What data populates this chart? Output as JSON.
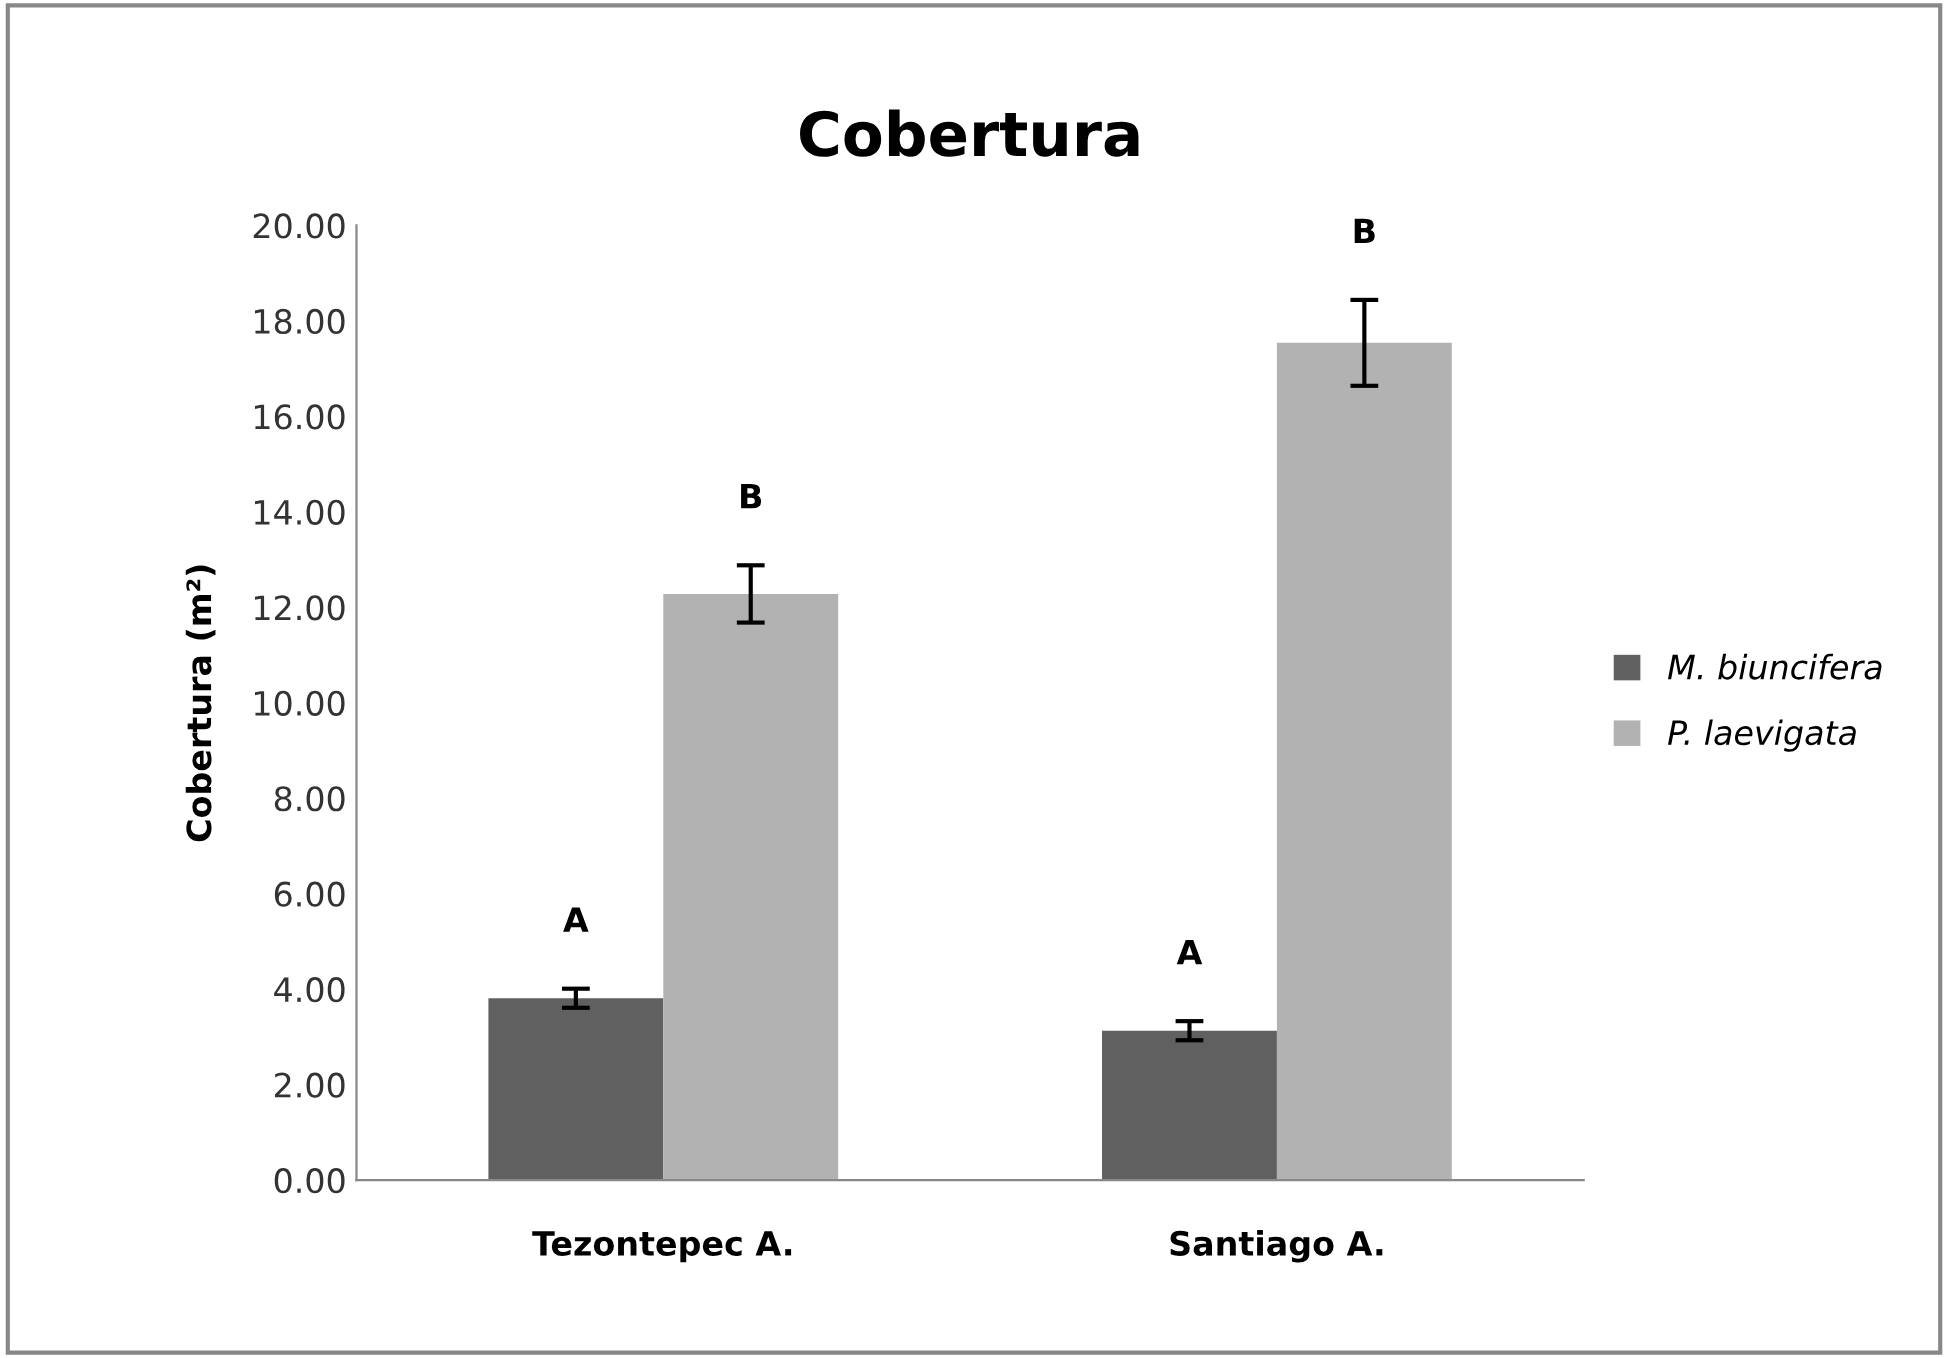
{
  "chart_data": {
    "type": "bar",
    "title": "Cobertura",
    "ylabel": "Cobertura (m²)",
    "categories": [
      "Tezontepec A.",
      "Santiago A."
    ],
    "series": [
      {
        "name": "M. biuncifera",
        "color": "#606060",
        "values": [
          3.81,
          3.13
        ],
        "errors": [
          0.2,
          0.2
        ]
      },
      {
        "name": "P. laevigata",
        "color": "#b2b2b2",
        "values": [
          12.28,
          17.54
        ],
        "errors": [
          0.6,
          0.9
        ]
      }
    ],
    "annotations": [
      "A",
      "B",
      "A",
      "B"
    ],
    "ylim": [
      0,
      20
    ],
    "yticks": [
      {
        "value": 0,
        "label": "0.00"
      },
      {
        "value": 2,
        "label": "2.00"
      },
      {
        "value": 4,
        "label": "4.00"
      },
      {
        "value": 6,
        "label": "6.00"
      },
      {
        "value": 8,
        "label": "8.00"
      },
      {
        "value": 10,
        "label": "10.00"
      },
      {
        "value": 12,
        "label": "12.00"
      },
      {
        "value": 14,
        "label": "14.00"
      },
      {
        "value": 16,
        "label": "16.00"
      },
      {
        "value": 18,
        "label": "18.00"
      },
      {
        "value": 20,
        "label": "20.00"
      }
    ],
    "grid": false,
    "legend": "right"
  }
}
